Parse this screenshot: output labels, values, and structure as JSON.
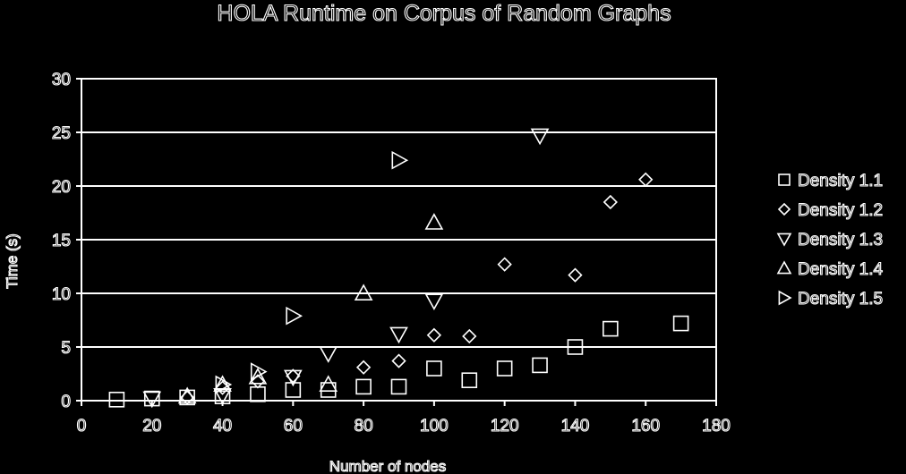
{
  "chart_data": {
    "type": "scatter",
    "title": "HOLA Runtime on Corpus of Random Graphs",
    "xlabel": "Number of nodes",
    "ylabel": "Time (s)",
    "xlim": [
      0,
      180
    ],
    "ylim": [
      0,
      30
    ],
    "xticks": [
      0,
      20,
      40,
      60,
      80,
      100,
      120,
      140,
      160,
      180
    ],
    "yticks": [
      0,
      5,
      10,
      15,
      20,
      25,
      30
    ],
    "grid": "horizontal",
    "legend_position": "right",
    "series": [
      {
        "name": "Density 1.1",
        "marker": "square",
        "points": [
          [
            10,
            0.1
          ],
          [
            20,
            0.2
          ],
          [
            30,
            0.3
          ],
          [
            40,
            0.4
          ],
          [
            50,
            0.6
          ],
          [
            60,
            1.0
          ],
          [
            70,
            1.0
          ],
          [
            80,
            1.3
          ],
          [
            90,
            1.3
          ],
          [
            100,
            3.0
          ],
          [
            110,
            1.9
          ],
          [
            120,
            3.0
          ],
          [
            130,
            3.3
          ],
          [
            140,
            5.0
          ],
          [
            150,
            6.7
          ],
          [
            170,
            7.2
          ]
        ]
      },
      {
        "name": "Density 1.2",
        "marker": "diamond",
        "points": [
          [
            30,
            0.3
          ],
          [
            40,
            1.2
          ],
          [
            50,
            1.8
          ],
          [
            60,
            2.3
          ],
          [
            80,
            3.1
          ],
          [
            90,
            3.7
          ],
          [
            100,
            6.1
          ],
          [
            110,
            6.0
          ],
          [
            120,
            12.7
          ],
          [
            140,
            11.7
          ],
          [
            150,
            18.5
          ],
          [
            160,
            20.6
          ]
        ]
      },
      {
        "name": "Density 1.3",
        "marker": "triangle-down",
        "points": [
          [
            20,
            0.2
          ],
          [
            40,
            0.5
          ],
          [
            60,
            2.2
          ],
          [
            70,
            4.4
          ],
          [
            90,
            6.2
          ],
          [
            100,
            9.3
          ],
          [
            130,
            24.7
          ]
        ]
      },
      {
        "name": "Density 1.4",
        "marker": "triangle-up",
        "points": [
          [
            30,
            0.4
          ],
          [
            40,
            1.5
          ],
          [
            50,
            2.2
          ],
          [
            70,
            1.5
          ],
          [
            80,
            10.0
          ],
          [
            100,
            16.6
          ]
        ]
      },
      {
        "name": "Density 1.5",
        "marker": "triangle-right",
        "points": [
          [
            40,
            1.5
          ],
          [
            50,
            2.7
          ],
          [
            60,
            7.9
          ],
          [
            90,
            22.4
          ]
        ]
      }
    ]
  }
}
